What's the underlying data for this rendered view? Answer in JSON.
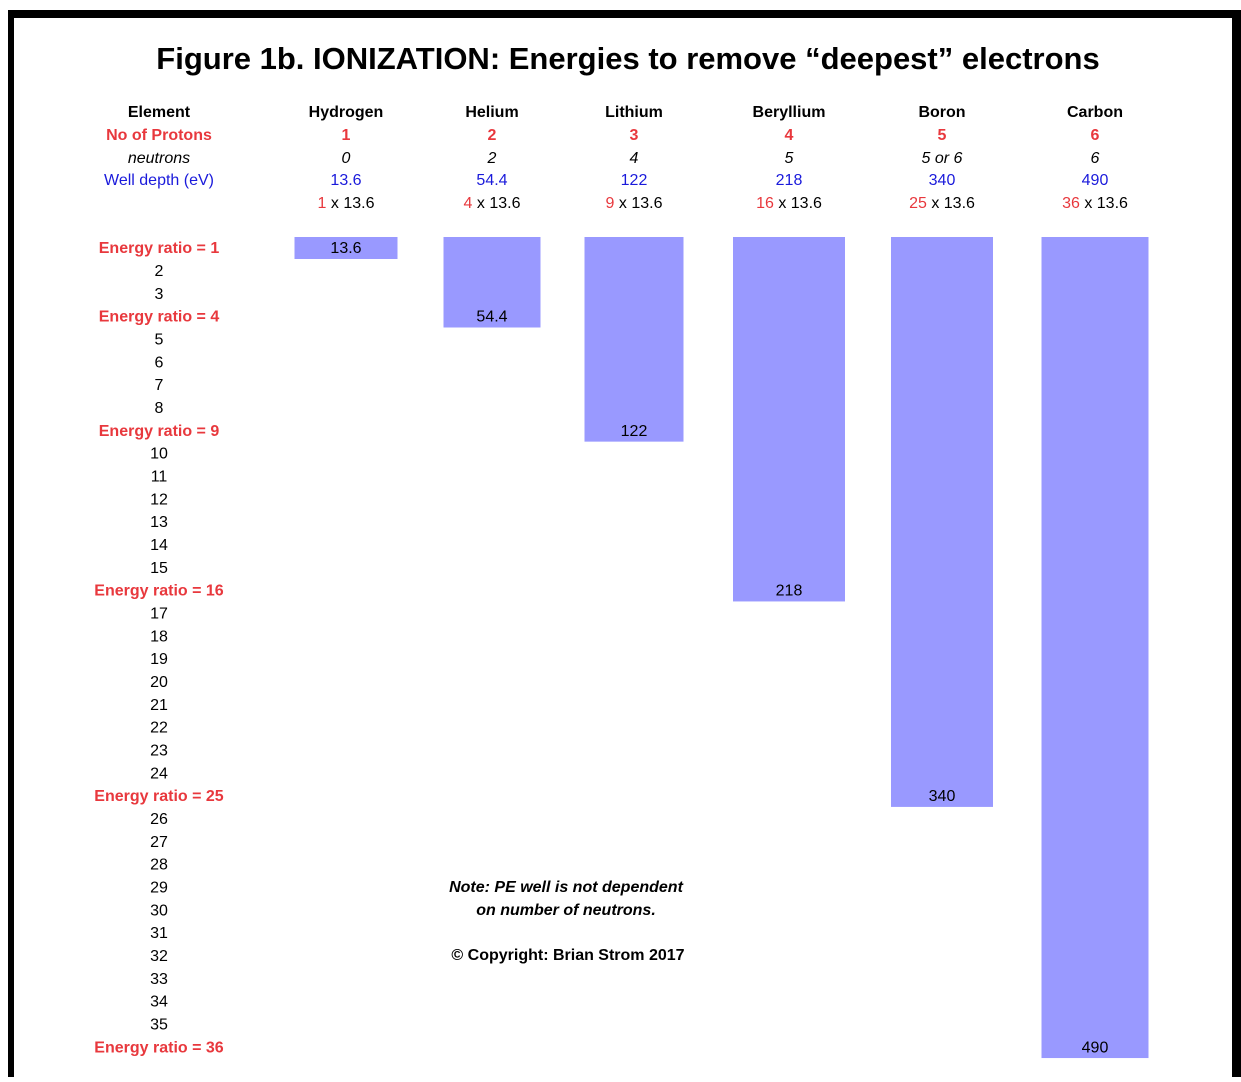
{
  "title": "Figure 1b.  IONIZATION:  Energies to remove  “deepest” electrons",
  "header_labels": {
    "element": "Element",
    "protons": "No of Protons",
    "neutrons": "neutrons",
    "well_depth": "Well depth (eV)"
  },
  "elements": [
    {
      "name": "Hydrogen",
      "protons": 1,
      "neutrons": 0,
      "well_depth": 13.6,
      "multiplier": 1,
      "factor": "x 13.6"
    },
    {
      "name": "Helium",
      "protons": 2,
      "neutrons": 2,
      "well_depth": 54.4,
      "multiplier": 4,
      "factor": "x 13.6"
    },
    {
      "name": "Lithium",
      "protons": 3,
      "neutrons": 4,
      "well_depth": 122,
      "multiplier": 9,
      "factor": "x 13.6"
    },
    {
      "name": "Beryllium",
      "protons": 4,
      "neutrons": 5,
      "well_depth": 218,
      "multiplier": 16,
      "factor": "x 13.6"
    },
    {
      "name": "Boron",
      "protons": 5,
      "neutrons": "5 or 6",
      "well_depth": 340,
      "multiplier": 25,
      "factor": "x 13.6"
    },
    {
      "name": "Carbon",
      "protons": 6,
      "neutrons": 6,
      "well_depth": 490,
      "multiplier": 36,
      "factor": "x 13.6"
    }
  ],
  "rows": [
    "Energy ratio = 1",
    2,
    3,
    "Energy ratio = 4",
    5,
    6,
    7,
    8,
    "Energy ratio = 9",
    10,
    11,
    12,
    13,
    14,
    15,
    "Energy ratio = 16",
    17,
    18,
    19,
    20,
    21,
    22,
    23,
    24,
    "Energy ratio = 25",
    26,
    27,
    28,
    29,
    30,
    31,
    32,
    33,
    34,
    35,
    "Energy ratio = 36"
  ],
  "note": [
    "Note: PE well is not dependent",
    "on number of neutrons."
  ],
  "copyright": "© Copyright:  Brian Strom 2017"
}
